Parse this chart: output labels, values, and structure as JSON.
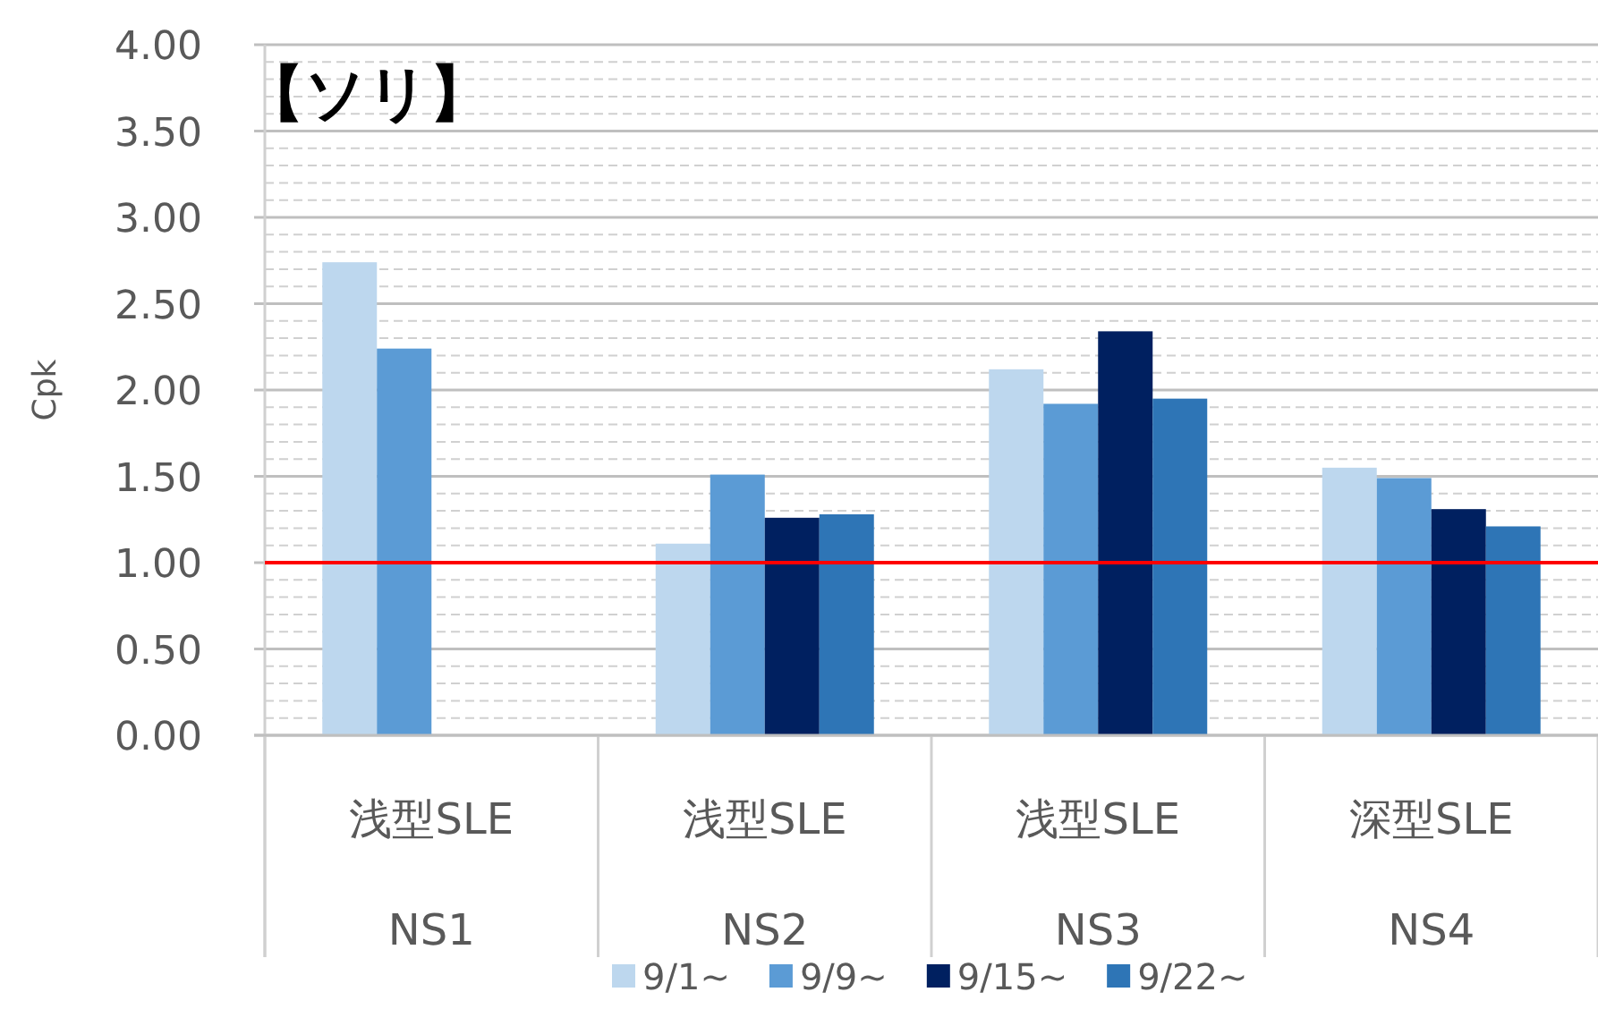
{
  "chart_data": {
    "type": "bar",
    "title": "【ソリ】",
    "ylabel": "Cpk",
    "categories": [
      "浅型SLE\nNS1",
      "浅型SLE\nNS2",
      "浅型SLE\nNS3",
      "深型SLE\nNS4"
    ],
    "series": [
      {
        "name": "9/1~",
        "color": "#bdd7ee",
        "values": [
          2.74,
          1.11,
          2.12,
          1.55
        ]
      },
      {
        "name": "9/9~",
        "color": "#5b9bd5",
        "values": [
          2.24,
          1.51,
          1.92,
          1.49
        ]
      },
      {
        "name": "9/15~",
        "color": "#002060",
        "values": [
          null,
          1.26,
          2.34,
          1.31
        ]
      },
      {
        "name": "9/22~",
        "color": "#2e75b6",
        "values": [
          null,
          1.28,
          1.95,
          1.21
        ]
      }
    ],
    "ylim": [
      0,
      4
    ],
    "yticks": [
      {
        "value": 0,
        "label": "0.00"
      },
      {
        "value": 0.5,
        "label": "0.50"
      },
      {
        "value": 1,
        "label": "1.00"
      },
      {
        "value": 1.5,
        "label": "1.50"
      },
      {
        "value": 2,
        "label": "2.00"
      },
      {
        "value": 2.5,
        "label": "2.50"
      },
      {
        "value": 3,
        "label": "3.00"
      },
      {
        "value": 3.5,
        "label": "3.50"
      },
      {
        "value": 4,
        "label": "4.00"
      }
    ],
    "ref_lines": [
      {
        "axis": "y",
        "value": 1,
        "color": "#ff0000"
      }
    ],
    "grid": true,
    "legend": "bottom"
  }
}
